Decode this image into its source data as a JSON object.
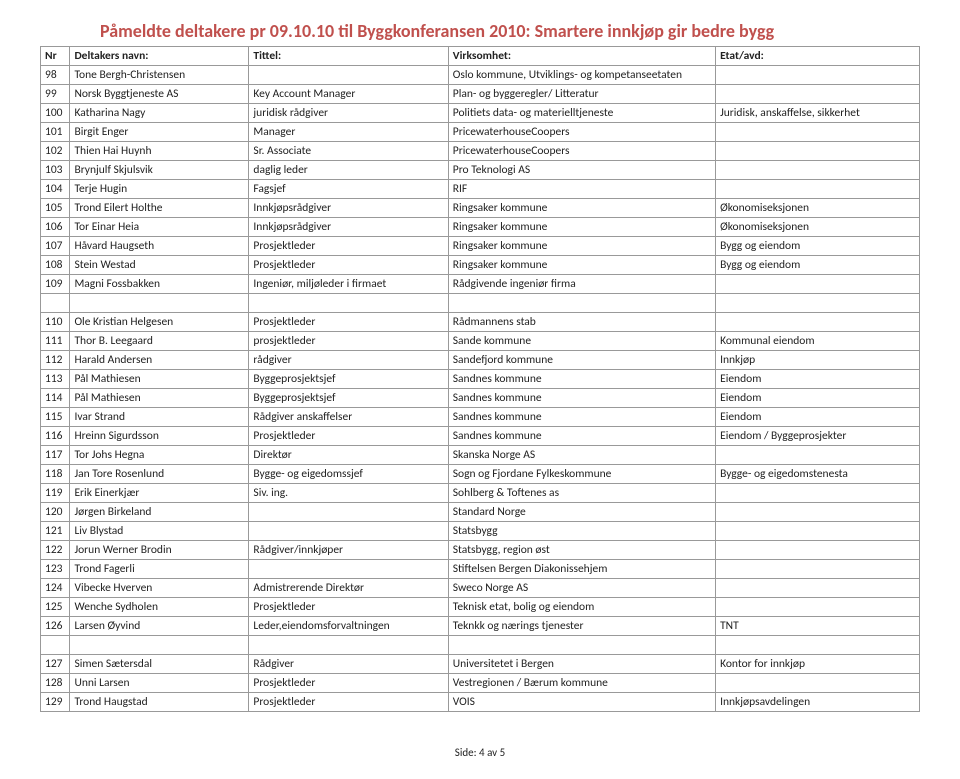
{
  "page_title": "Påmeldte deltakere pr 09.10.10 til Byggkonferansen 2010: Smartere innkjøp gir bedre bygg",
  "headers": {
    "nr": "Nr",
    "name": "Deltakers navn:",
    "title": "Tittel:",
    "company": "Virksomhet:",
    "dept": "Etat/avd:"
  },
  "rows1": [
    {
      "nr": "98",
      "name": "Tone Bergh-Christensen",
      "title": "",
      "company": "Oslo kommune, Utviklings- og kompetanseetaten",
      "dept": ""
    },
    {
      "nr": "99",
      "name": "Norsk Byggtjeneste AS",
      "title": "Key Account Manager",
      "company": "Plan- og byggeregler/ Litteratur",
      "dept": ""
    },
    {
      "nr": "100",
      "name": "Katharina Nagy",
      "title": "juridisk rådgiver",
      "company": "Politiets data- og materielltjeneste",
      "dept": "Juridisk, anskaffelse, sikkerhet"
    },
    {
      "nr": "101",
      "name": "Birgit Enger",
      "title": "Manager",
      "company": "PricewaterhouseCoopers",
      "dept": ""
    },
    {
      "nr": "102",
      "name": "Thien Hai Huynh",
      "title": "Sr. Associate",
      "company": "PricewaterhouseCoopers",
      "dept": ""
    },
    {
      "nr": "103",
      "name": "Brynjulf Skjulsvik",
      "title": "daglig leder",
      "company": "Pro Teknologi AS",
      "dept": ""
    },
    {
      "nr": "104",
      "name": "Terje Hugin",
      "title": "Fagsjef",
      "company": "RIF",
      "dept": ""
    },
    {
      "nr": "105",
      "name": "Trond Eilert Holthe",
      "title": "Innkjøpsrådgiver",
      "company": "Ringsaker kommune",
      "dept": "Økonomiseksjonen"
    },
    {
      "nr": "106",
      "name": "Tor Einar Heia",
      "title": "Innkjøpsrådgiver",
      "company": "Ringsaker kommune",
      "dept": "Økonomiseksjonen"
    },
    {
      "nr": "107",
      "name": "Håvard Haugseth",
      "title": "Prosjektleder",
      "company": "Ringsaker kommune",
      "dept": "Bygg og eiendom"
    },
    {
      "nr": "108",
      "name": "Stein Westad",
      "title": "Prosjektleder",
      "company": "Ringsaker kommune",
      "dept": "Bygg og eiendom"
    },
    {
      "nr": "109",
      "name": "Magni Fossbakken",
      "title": "Ingeniør, miljøleder i firmaet",
      "company": "Rådgivende ingeniør firma",
      "dept": ""
    }
  ],
  "rows2": [
    {
      "nr": "110",
      "name": "Ole Kristian Helgesen",
      "title": "Prosjektleder",
      "company": "Rådmannens stab",
      "dept": ""
    },
    {
      "nr": "111",
      "name": "Thor B. Leegaard",
      "title": "prosjektleder",
      "company": "Sande kommune",
      "dept": "Kommunal eiendom"
    },
    {
      "nr": "112",
      "name": "Harald Andersen",
      "title": "rådgiver",
      "company": "Sandefjord kommune",
      "dept": "Innkjøp"
    },
    {
      "nr": "113",
      "name": "Pål Mathiesen",
      "title": "Byggeprosjektsjef",
      "company": "Sandnes kommune",
      "dept": "Eiendom"
    },
    {
      "nr": "114",
      "name": "Pål Mathiesen",
      "title": "Byggeprosjektsjef",
      "company": "Sandnes kommune",
      "dept": "Eiendom"
    },
    {
      "nr": "115",
      "name": "Ivar Strand",
      "title": "Rådgiver anskaffelser",
      "company": "Sandnes kommune",
      "dept": "Eiendom"
    },
    {
      "nr": "116",
      "name": "Hreinn Sigurdsson",
      "title": "Prosjektleder",
      "company": "Sandnes kommune",
      "dept": "Eiendom / Byggeprosjekter"
    },
    {
      "nr": "117",
      "name": "Tor Johs Hegna",
      "title": "Direktør",
      "company": "Skanska Norge AS",
      "dept": ""
    },
    {
      "nr": "118",
      "name": "Jan Tore Rosenlund",
      "title": "Bygge- og eigedomssjef",
      "company": "Sogn og Fjordane Fylkeskommune",
      "dept": "Bygge- og eigedomstenesta"
    },
    {
      "nr": "119",
      "name": "Erik Einerkjær",
      "title": "Siv. ing.",
      "company": "Sohlberg & Toftenes as",
      "dept": ""
    },
    {
      "nr": "120",
      "name": "Jørgen Birkeland",
      "title": "",
      "company": "Standard Norge",
      "dept": ""
    },
    {
      "nr": "121",
      "name": "Liv Blystad",
      "title": "",
      "company": "Statsbygg",
      "dept": ""
    },
    {
      "nr": "122",
      "name": "Jorun Werner Brodin",
      "title": "Rådgiver/innkjøper",
      "company": "Statsbygg, region øst",
      "dept": ""
    },
    {
      "nr": "123",
      "name": "Trond Fagerli",
      "title": "",
      "company": "Stiftelsen Bergen Diakonissehjem",
      "dept": ""
    },
    {
      "nr": "124",
      "name": "Vibecke Hverven",
      "title": "Admistrerende Direktør",
      "company": "Sweco Norge AS",
      "dept": ""
    },
    {
      "nr": "125",
      "name": "Wenche Sydholen",
      "title": "Prosjektleder",
      "company": "Teknisk etat, bolig og eiendom",
      "dept": ""
    },
    {
      "nr": "126",
      "name": "Larsen Øyvind",
      "title": "Leder,eiendomsforvaltningen",
      "company": "Teknkk og nærings tjenester",
      "dept": "TNT"
    }
  ],
  "rows3": [
    {
      "nr": "127",
      "name": "Simen Sætersdal",
      "title": "Rådgiver",
      "company": "Universitetet i Bergen",
      "dept": "Kontor for innkjøp"
    },
    {
      "nr": "128",
      "name": "Unni Larsen",
      "title": "Prosjektleder",
      "company": "Vestregionen / Bærum kommune",
      "dept": ""
    },
    {
      "nr": "129",
      "name": "Trond Haugstad",
      "title": "Prosjektleder",
      "company": "VOIS",
      "dept": "Innkjøpsavdelingen"
    }
  ],
  "footer": "Side: 4 av 5",
  "colors": {
    "title": "#c0504d",
    "border": "#999999",
    "text": "#222222",
    "bg": "#ffffff"
  },
  "font": {
    "family": "Calibri, Arial, sans-serif",
    "body_size": 11.5,
    "title_size": 18
  }
}
